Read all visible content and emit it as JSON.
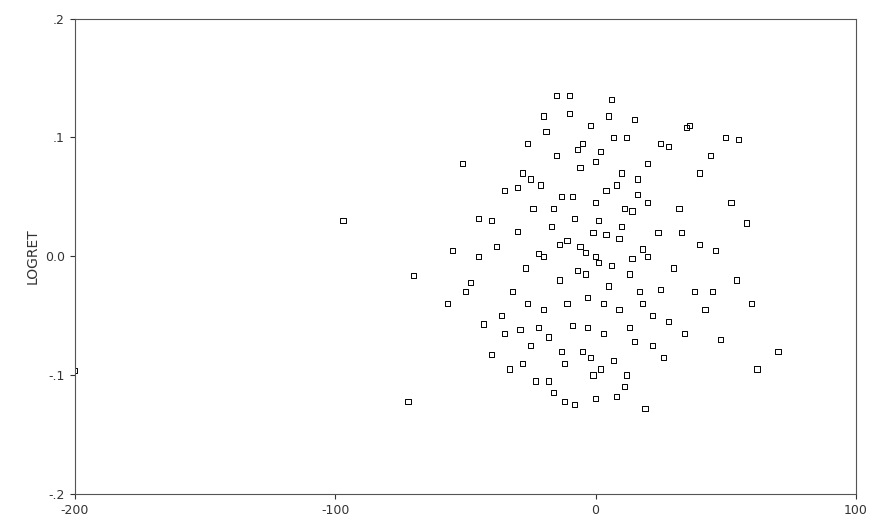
{
  "chart_data": {
    "type": "scatter",
    "y_label": "LOGRET",
    "x": [
      -97,
      -72,
      -200,
      -70,
      -57,
      -55,
      -51,
      -48,
      -45,
      -43,
      -40,
      -38,
      -36,
      -35,
      -33,
      -32,
      -30,
      -29,
      -28,
      -27,
      -26,
      -25,
      -24,
      -23,
      -22,
      -21,
      -20,
      -19,
      -18,
      -17,
      -16,
      -15,
      -14,
      -13,
      -12,
      -11,
      -10,
      -9,
      -8,
      -7,
      -6,
      -5,
      -4,
      -3,
      -2,
      -1,
      0,
      1,
      2,
      3,
      4,
      5,
      6,
      7,
      8,
      9,
      10,
      11,
      12,
      13,
      14,
      15,
      16,
      17,
      18,
      19,
      20,
      22,
      24,
      26,
      28,
      30,
      32,
      34,
      36,
      38,
      40,
      42,
      44,
      46,
      48,
      50,
      52,
      54,
      55,
      58,
      60,
      62,
      70,
      -10,
      -15,
      -20,
      5,
      15,
      25,
      35,
      -5,
      0,
      10,
      -25,
      -30,
      20,
      -8,
      -12,
      0,
      8,
      -18,
      -28,
      12,
      22,
      -3,
      3,
      -6,
      6,
      -1,
      1,
      -14,
      14,
      -20,
      20,
      25,
      -35,
      -40,
      40,
      45,
      33,
      -45,
      -50,
      28,
      -16,
      16,
      -2,
      2,
      -9,
      9,
      -4,
      4,
      -22,
      -11,
      11,
      7,
      -7,
      18,
      -26,
      0,
      -13,
      13
    ],
    "values": [
      0.03,
      -0.122,
      -0.096,
      -0.016,
      -0.04,
      0.005,
      0.078,
      -0.022,
      0.032,
      -0.057,
      -0.083,
      0.008,
      -0.05,
      0.055,
      -0.095,
      -0.03,
      0.021,
      -0.062,
      0.07,
      -0.01,
      0.095,
      -0.075,
      0.04,
      -0.105,
      0.002,
      0.06,
      -0.045,
      0.105,
      -0.068,
      0.025,
      -0.115,
      0.085,
      -0.02,
      0.05,
      -0.09,
      0.013,
      0.12,
      -0.058,
      0.032,
      -0.012,
      0.075,
      -0.08,
      0.003,
      -0.035,
      0.11,
      -0.1,
      0.045,
      -0.005,
      0.088,
      -0.065,
      0.018,
      -0.025,
      0.132,
      -0.088,
      0.06,
      -0.045,
      0.025,
      -0.11,
      0.1,
      -0.015,
      0.038,
      -0.072,
      0.052,
      -0.03,
      0.006,
      -0.128,
      0.078,
      -0.05,
      0.02,
      -0.085,
      0.092,
      -0.01,
      0.04,
      -0.065,
      0.11,
      -0.03,
      0.07,
      -0.045,
      0.085,
      0.005,
      -0.07,
      0.1,
      0.045,
      -0.02,
      0.098,
      0.028,
      -0.04,
      -0.095,
      -0.08,
      0.135,
      0.135,
      0.118,
      0.118,
      0.115,
      0.095,
      0.108,
      0.095,
      0.08,
      0.07,
      0.065,
      0.058,
      0.045,
      -0.125,
      -0.122,
      -0.12,
      -0.118,
      -0.105,
      -0.09,
      -0.1,
      -0.075,
      -0.06,
      -0.04,
      0.008,
      -0.008,
      0.02,
      0.03,
      0.01,
      -0.002,
      0.0,
      0.0,
      -0.028,
      -0.065,
      0.03,
      0.01,
      -0.03,
      0.02,
      0.0,
      -0.03,
      -0.055,
      0.04,
      0.065,
      -0.085,
      -0.095,
      0.05,
      0.015,
      -0.015,
      0.055,
      -0.06,
      -0.04,
      0.04,
      0.1,
      0.09,
      -0.04,
      -0.04,
      0.0,
      -0.08,
      -0.06
    ],
    "color": "#000000",
    "marker": "square",
    "xlim": [
      -200,
      100
    ],
    "xticks": [
      -200,
      -100,
      0,
      100
    ],
    "ylim": [
      -0.2,
      0.2
    ],
    "yticks": [
      {
        "value": -0.2,
        "label": "-.2"
      },
      {
        "value": -0.1,
        "label": "-.1"
      },
      {
        "value": 0.0,
        "label": "0.0"
      },
      {
        "value": 0.1,
        "label": ".1"
      },
      {
        "value": 0.2,
        "label": ".2"
      }
    ],
    "grid": false
  }
}
